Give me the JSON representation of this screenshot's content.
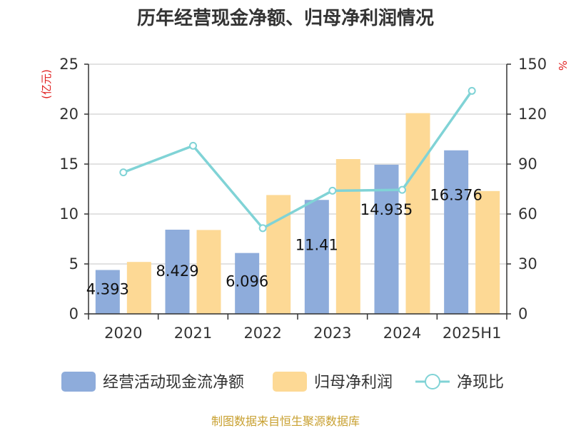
{
  "chart_data": {
    "type": "bar",
    "title": "历年经营现金净额、归母净利润情况",
    "categories": [
      "2020",
      "2021",
      "2022",
      "2023",
      "2024",
      "2025H1"
    ],
    "y_left": {
      "unit_label": "(亿元)",
      "range": [
        0,
        25
      ],
      "ticks": [
        "0",
        "5",
        "10",
        "15",
        "20",
        "25"
      ]
    },
    "y_right": {
      "unit_label": "%",
      "range": [
        0,
        150
      ],
      "ticks": [
        "0",
        "30",
        "60",
        "90",
        "120",
        "150"
      ]
    },
    "series": [
      {
        "name": "经营活动现金流净额",
        "type": "bar",
        "axis": "left",
        "color": "#8eacdb",
        "values": [
          4.393,
          8.429,
          6.096,
          11.41,
          14.935,
          16.376
        ],
        "labels": [
          "4.393",
          "8.429",
          "6.096",
          "11.41",
          "14.935",
          "16.376"
        ]
      },
      {
        "name": "归母净利润",
        "type": "bar",
        "axis": "left",
        "color": "#fdd995",
        "values": [
          5.2,
          8.4,
          11.9,
          15.5,
          20.1,
          12.3
        ]
      },
      {
        "name": "净现比",
        "type": "line",
        "axis": "right",
        "color": "#80d3d6",
        "values": [
          85,
          101,
          51.5,
          74,
          74.5,
          134
        ]
      }
    ],
    "grid": true,
    "legend_position": "bottom"
  },
  "source": "制图数据来自恒生聚源数据库"
}
